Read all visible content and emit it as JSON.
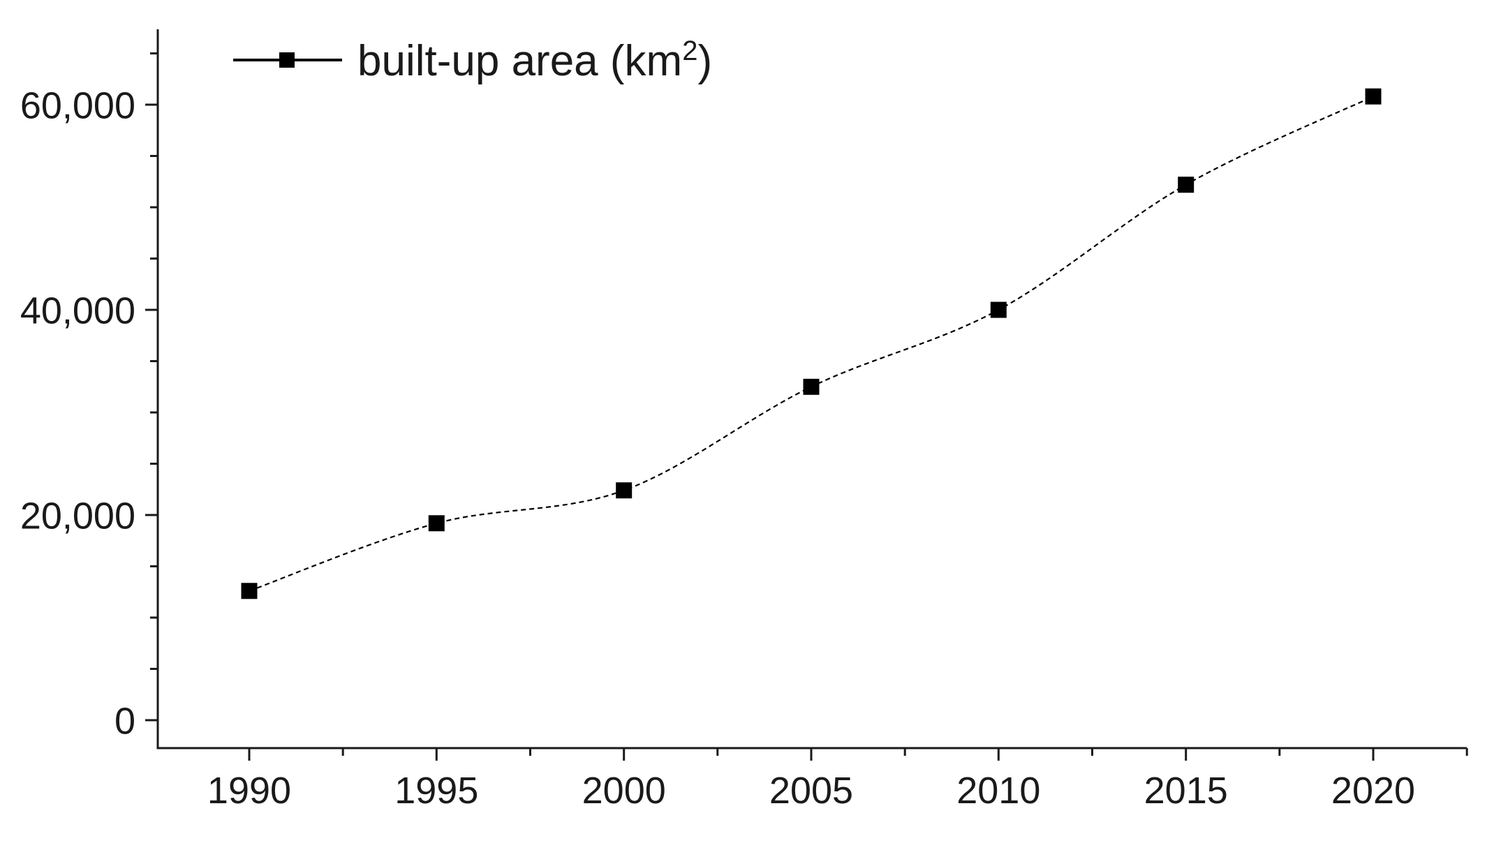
{
  "page": {
    "background_color": "#ffffff",
    "axis_color": "#1a1a1a",
    "text_color": "#1a1a1a",
    "marker_color": "#000000"
  },
  "chart_data": {
    "type": "line",
    "title": "",
    "xlabel": "",
    "ylabel": "",
    "x": [
      1990,
      1995,
      2000,
      2005,
      2010,
      2015,
      2020
    ],
    "series": [
      {
        "name": "built-up area (km²)",
        "values": [
          12600,
          19200,
          22400,
          32500,
          40000,
          52200,
          60800
        ],
        "color": "#000000",
        "marker": "filled-square",
        "line_style": "thin-dashed"
      }
    ],
    "xlim": [
      1987.5,
      2022.5
    ],
    "ylim": [
      -2700,
      67300
    ],
    "xticks": {
      "major": [
        1990,
        1995,
        2000,
        2005,
        2010,
        2015,
        2020
      ],
      "labels": [
        "1990",
        "1995",
        "2000",
        "2005",
        "2010",
        "2015",
        "2020"
      ],
      "minor": [
        1992.5,
        1997.5,
        2002.5,
        2007.5,
        2012.5,
        2017.5,
        2022.5
      ]
    },
    "yticks": {
      "major": [
        0,
        20000,
        40000,
        60000
      ],
      "labels": [
        "0",
        "20,000",
        "40,000",
        "60,000"
      ],
      "minor": [
        5000,
        10000,
        15000,
        25000,
        30000,
        35000,
        45000,
        50000,
        55000,
        65000
      ]
    },
    "grid": false,
    "legend": {
      "position": "top-left-inside",
      "entries": [
        "built-up area (km²)"
      ]
    }
  }
}
